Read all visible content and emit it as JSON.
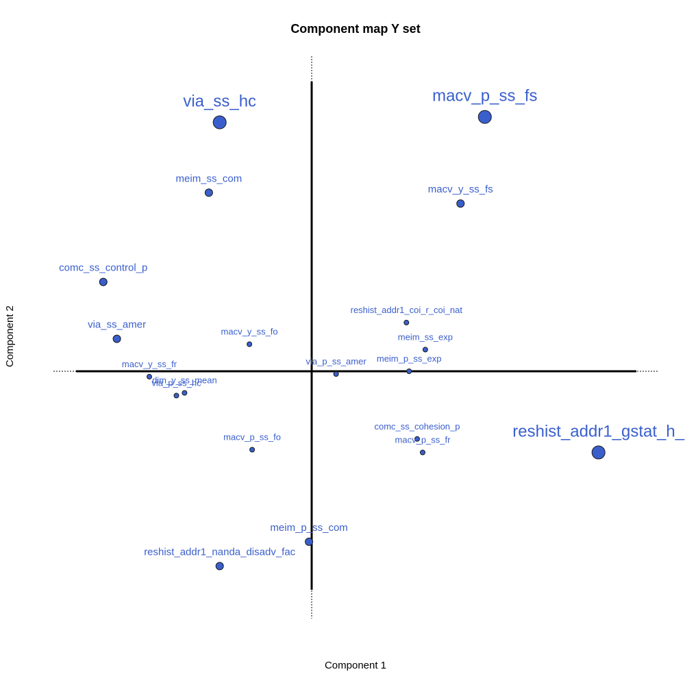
{
  "chart_data": {
    "type": "scatter",
    "title": "Component map Y set",
    "xlabel": "Component 1",
    "ylabel": "Component 2",
    "grid": false,
    "legend": "none",
    "colors": {
      "point_fill": "#3a5fcd",
      "point_stroke": "#1a1a1a",
      "label": "#3a5fcd",
      "axis": "#000000"
    },
    "xlim": [
      -1.1,
      1.1
    ],
    "ylim": [
      -1.1,
      1.1
    ],
    "points": [
      {
        "label": "via_ss_hc",
        "x": -0.34,
        "y": 0.92,
        "size": 3
      },
      {
        "label": "macv_p_ss_fs",
        "x": 0.64,
        "y": 0.94,
        "size": 3
      },
      {
        "label": "meim_ss_com",
        "x": -0.38,
        "y": 0.66,
        "size": 2
      },
      {
        "label": "macv_y_ss_fs",
        "x": 0.55,
        "y": 0.62,
        "size": 2
      },
      {
        "label": "comc_ss_control_p",
        "x": -0.77,
        "y": 0.33,
        "size": 2
      },
      {
        "label": "reshist_addr1_coi_r_coi_nat",
        "x": 0.35,
        "y": 0.18,
        "size": 1
      },
      {
        "label": "via_ss_amer",
        "x": -0.72,
        "y": 0.12,
        "size": 2
      },
      {
        "label": "macv_y_ss_fo",
        "x": -0.23,
        "y": 0.1,
        "size": 1
      },
      {
        "label": "meim_ss_exp",
        "x": 0.42,
        "y": 0.08,
        "size": 1
      },
      {
        "label": "via_p_ss_amer",
        "x": 0.09,
        "y": -0.01,
        "size": 1
      },
      {
        "label": "meim_p_ss_exp",
        "x": 0.36,
        "y": 0.0,
        "size": 1
      },
      {
        "label": "macv_y_ss_fr",
        "x": -0.6,
        "y": -0.02,
        "size": 1
      },
      {
        "label": "dim_y_ss_mean",
        "x": -0.47,
        "y": -0.08,
        "size": 1
      },
      {
        "label": "via_p_ss_hc",
        "x": -0.5,
        "y": -0.09,
        "size": 1
      },
      {
        "label": "comc_ss_cohesion_p",
        "x": 0.39,
        "y": -0.25,
        "size": 1
      },
      {
        "label": "macv_p_ss_fr",
        "x": 0.41,
        "y": -0.3,
        "size": 1
      },
      {
        "label": "reshist_addr1_gstat_h_",
        "x": 1.06,
        "y": -0.3,
        "size": 3
      },
      {
        "label": "macv_p_ss_fo",
        "x": -0.22,
        "y": -0.29,
        "size": 1
      },
      {
        "label": "meim_p_ss_com",
        "x": -0.01,
        "y": -0.63,
        "size": 2
      },
      {
        "label": "reshist_addr1_nanda_disadv_fac",
        "x": -0.34,
        "y": -0.72,
        "size": 2
      }
    ]
  }
}
